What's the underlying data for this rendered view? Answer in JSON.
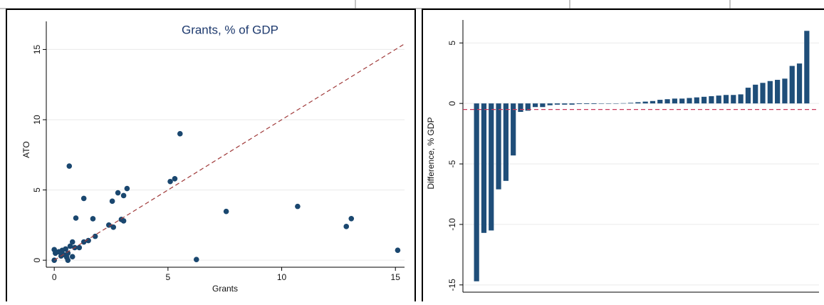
{
  "chart_data": [
    {
      "type": "scatter",
      "title": "Grants, % of GDP",
      "x_label": "Grants",
      "y_label": "ATO",
      "xlim": [
        -0.35,
        15.4
      ],
      "ylim": [
        -0.5,
        17
      ],
      "xticks": [
        0,
        5,
        10,
        15
      ],
      "yticks": [
        0,
        5,
        10,
        15
      ],
      "grid": true,
      "series": [
        {
          "type": "scatter",
          "color": "#1a476f",
          "x": [
            0,
            0.05,
            0,
            0.2,
            0.3,
            0.35,
            0.4,
            0.5,
            0.55,
            0.6,
            0.6,
            0.7,
            0.8,
            0.8,
            0.9,
            0.95,
            1.1,
            1.3,
            1.3,
            1.5,
            1.7,
            1.8,
            0.66,
            2.4,
            2.55,
            2.6,
            2.8,
            2.95,
            3.05,
            3.05,
            3.2,
            5.1,
            5.3,
            5.53,
            6.25,
            7.56,
            10.7,
            12.84,
            13.06,
            15.1
          ],
          "y": [
            0.75,
            0.5,
            0,
            0.6,
            0.3,
            0.7,
            0.4,
            0.8,
            0.2,
            0.5,
            0,
            1.0,
            0.25,
            1.3,
            0.9,
            3.0,
            0.9,
            1.3,
            4.4,
            1.4,
            2.95,
            1.7,
            6.7,
            2.5,
            4.2,
            2.35,
            4.8,
            2.9,
            4.6,
            2.8,
            5.1,
            5.6,
            5.8,
            9.0,
            0.05,
            3.47,
            3.83,
            2.4,
            2.96,
            0.71
          ]
        },
        {
          "type": "line",
          "color": "#a03a3a",
          "x": [
            0,
            15.4
          ],
          "y": [
            0,
            15.4
          ]
        }
      ]
    },
    {
      "type": "bar",
      "y_label": "Difference, % GDP",
      "ylim": [
        -15.6,
        6.9
      ],
      "yticks": [
        -15,
        -10,
        -5,
        0,
        5
      ],
      "grid": true,
      "color": "#1f4e79",
      "ref_line": -0.5,
      "ref_color": "#c8385a",
      "values": [
        -14.7,
        -10.7,
        -10.5,
        -7.1,
        -6.4,
        -4.3,
        -0.7,
        -0.6,
        -0.3,
        -0.3,
        -0.15,
        -0.1,
        -0.1,
        -0.1,
        -0.05,
        -0.05,
        -0.05,
        -0.03,
        -0.02,
        -0.01,
        0.02,
        0.05,
        0.1,
        0.15,
        0.2,
        0.3,
        0.35,
        0.4,
        0.4,
        0.45,
        0.5,
        0.55,
        0.6,
        0.65,
        0.7,
        0.7,
        0.75,
        1.3,
        1.55,
        1.7,
        1.85,
        1.95,
        2.05,
        3.1,
        3.3,
        6.0
      ]
    }
  ]
}
